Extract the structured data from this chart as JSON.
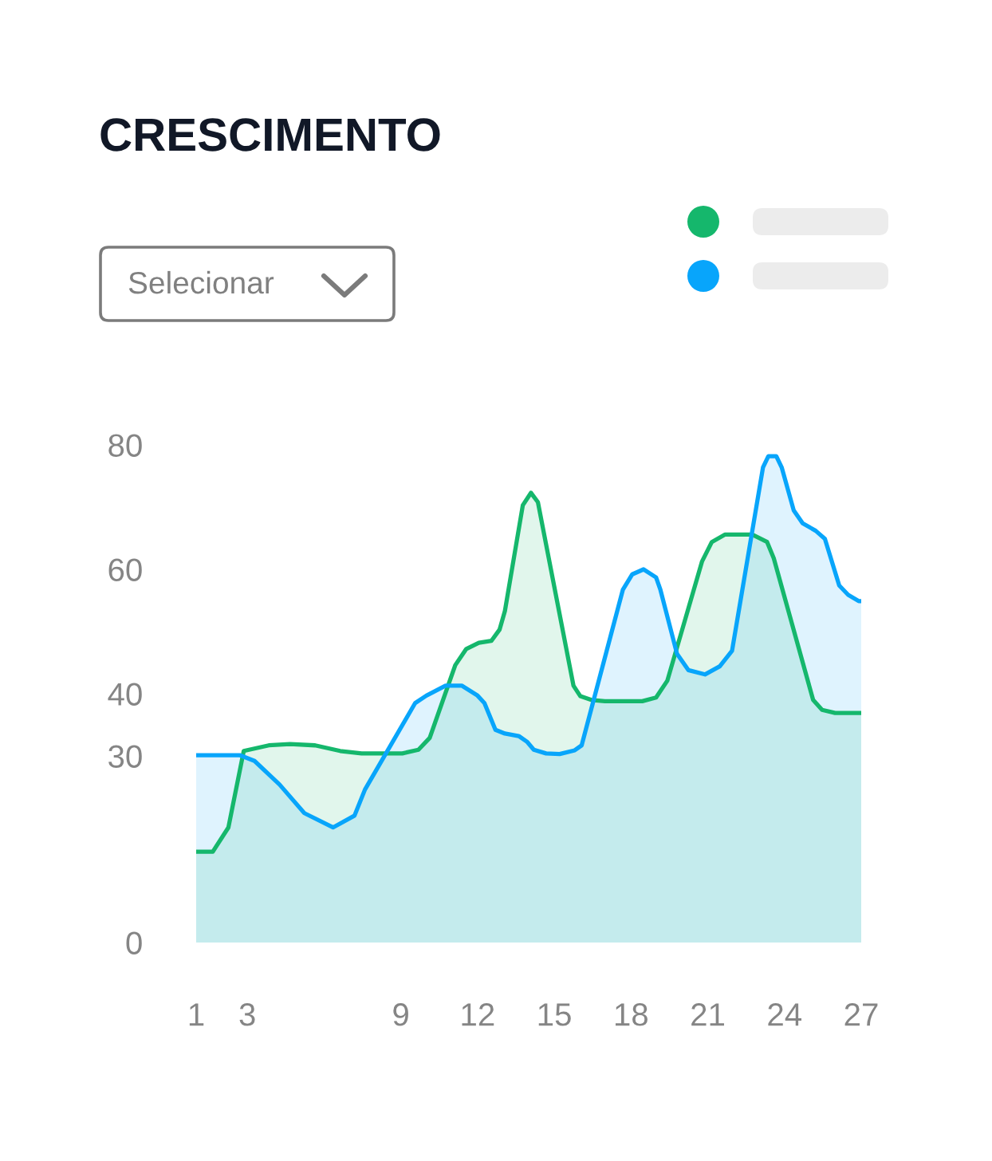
{
  "chart_data": {
    "type": "area",
    "title": "CRESCIMENTO",
    "annotations": [
      "Selecionar"
    ],
    "xlim": [
      1,
      27
    ],
    "xticks": [
      1,
      3,
      9,
      12,
      15,
      18,
      21,
      24,
      27
    ],
    "ylim": [
      0,
      80
    ],
    "yticks": [
      0,
      30,
      40,
      60,
      80
    ],
    "series": [
      {
        "color": "#15b76c",
        "x": [
          1,
          1.65,
          2.26,
          2.86,
          3.84,
          4.67,
          5.65,
          6.63,
          7.47,
          9.06,
          9.69,
          10.13,
          11.13,
          11.56,
          12.05,
          12.54,
          12.86,
          13.07,
          13.77,
          14.09,
          14.36,
          15.75,
          16.02,
          16.45,
          16.98,
          18.44,
          18.98,
          19.42,
          20.78,
          21.16,
          21.68,
          22.74,
          23.32,
          23.58,
          25.12,
          25.47,
          25.98,
          27
        ],
        "values": [
          14.6,
          14.6,
          18.5,
          30.8,
          31.7,
          31.9,
          31.7,
          30.8,
          30.4,
          30.4,
          31.0,
          32.9,
          44.6,
          47.2,
          48.2,
          48.5,
          50.3,
          53.3,
          70.3,
          72.3,
          70.8,
          41.3,
          39.6,
          39.0,
          38.8,
          38.8,
          39.4,
          42.1,
          61.3,
          64.4,
          65.6,
          65.6,
          64.4,
          61.8,
          39.0,
          37.4,
          36.9,
          36.9
        ]
      },
      {
        "color": "#08a5fb",
        "x": [
          1,
          2.72,
          3.28,
          4.26,
          5.23,
          6.35,
          7.19,
          7.6,
          9.56,
          10.0,
          10.75,
          11.38,
          12.0,
          12.27,
          12.7,
          13.07,
          13.61,
          13.93,
          14.2,
          14.68,
          15.21,
          15.8,
          16.07,
          17.68,
          18.05,
          18.49,
          18.98,
          19.15,
          19.8,
          20.24,
          20.89,
          21.47,
          21.95,
          23.16,
          23.37,
          23.68,
          23.89,
          24.36,
          24.71,
          25.22,
          25.58,
          26.14,
          26.49,
          26.9,
          27
        ],
        "values": [
          30.1,
          30.1,
          29.2,
          25.4,
          20.8,
          18.5,
          20.4,
          24.6,
          38.5,
          39.7,
          41.3,
          41.3,
          39.7,
          38.5,
          34.2,
          33.6,
          33.2,
          32.3,
          31.0,
          30.4,
          30.3,
          30.9,
          31.7,
          56.7,
          59.2,
          60.0,
          58.7,
          56.7,
          46.4,
          43.8,
          43.1,
          44.4,
          46.9,
          76.4,
          78.2,
          78.2,
          76.4,
          69.5,
          67.4,
          66.2,
          64.9,
          57.4,
          55.9,
          54.9,
          54.9
        ]
      }
    ]
  }
}
